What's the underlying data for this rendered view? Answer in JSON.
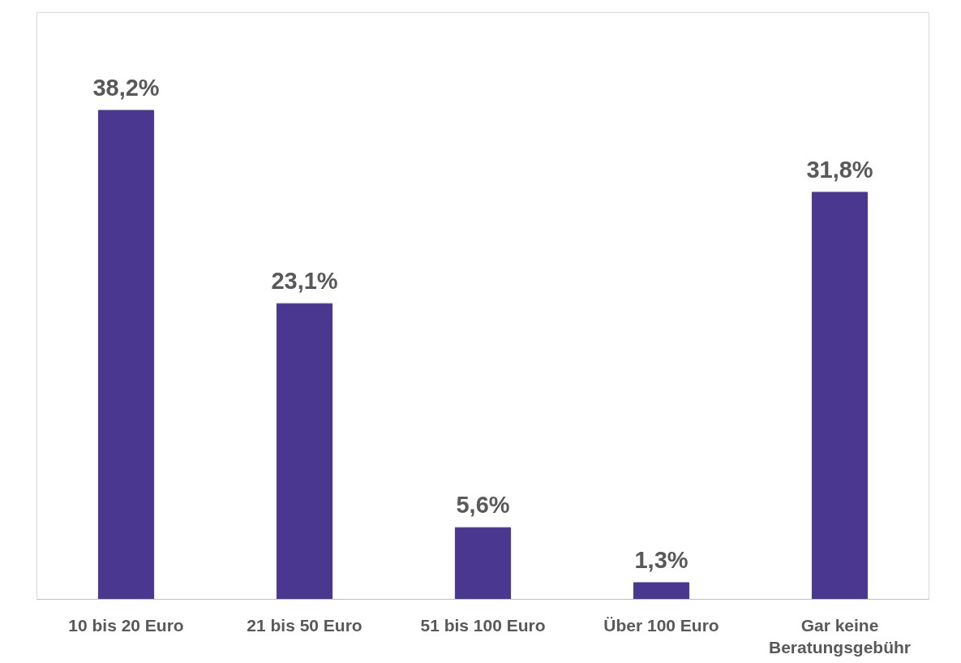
{
  "chart_data": {
    "type": "bar",
    "categories": [
      "10 bis 20 Euro",
      "21 bis 50 Euro",
      "51 bis 100 Euro",
      "Über 100 Euro",
      "Gar keine Beratungsgebühr"
    ],
    "values": [
      38.2,
      23.1,
      5.6,
      1.3,
      31.8
    ],
    "value_labels": [
      "38,2%",
      "23,1%",
      "5,6%",
      "1,3%",
      "31,8%"
    ],
    "color": "#4a3790",
    "grid": false
  }
}
